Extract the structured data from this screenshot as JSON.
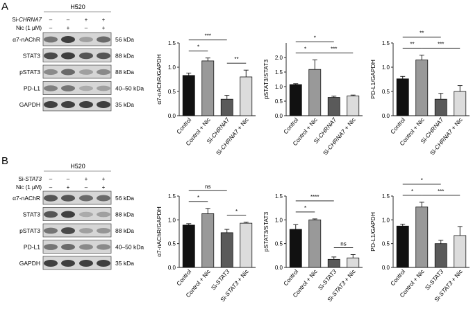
{
  "panels": [
    {
      "letter": "A",
      "cell_line": "H520",
      "conditions": [
        {
          "label": "Si-",
          "italic": "CHRNA7",
          "marks": [
            "–",
            "–",
            "+",
            "+"
          ]
        },
        {
          "label": "Nic (1 μM)",
          "marks": [
            "–",
            "+",
            "–",
            "+"
          ]
        }
      ],
      "blots": [
        {
          "name": "α7-nAChR",
          "kda": "56 kDa",
          "intensity": [
            0.55,
            0.8,
            0.35,
            0.6
          ]
        },
        {
          "name": "STAT3",
          "kda": "88 kDa",
          "intensity": [
            0.75,
            0.8,
            0.7,
            0.7
          ]
        },
        {
          "name": "pSTAT3",
          "kda": "88 kDa",
          "intensity": [
            0.45,
            0.6,
            0.35,
            0.45
          ]
        },
        {
          "name": "PD-L1",
          "kda": "40–50 kDa",
          "intensity": [
            0.5,
            0.55,
            0.3,
            0.35
          ]
        },
        {
          "name": "GAPDH",
          "kda": "35 kDa",
          "intensity": [
            0.8,
            0.8,
            0.8,
            0.8
          ]
        }
      ]
    },
    {
      "letter": "B",
      "cell_line": "H520",
      "conditions": [
        {
          "label": "Si-",
          "italic": "STAT3",
          "marks": [
            "–",
            "–",
            "+",
            "+"
          ]
        },
        {
          "label": "Nic (1 μM)",
          "marks": [
            "–",
            "+",
            "–",
            "+"
          ]
        }
      ],
      "blots": [
        {
          "name": "α7-nAChR",
          "kda": "56 kDa",
          "intensity": [
            0.7,
            0.7,
            0.6,
            0.6
          ]
        },
        {
          "name": "STAT3",
          "kda": "88 kDa",
          "intensity": [
            0.7,
            0.8,
            0.3,
            0.35
          ]
        },
        {
          "name": "pSTAT3",
          "kda": "88 kDa",
          "intensity": [
            0.55,
            0.75,
            0.35,
            0.4
          ]
        },
        {
          "name": "PD-L1",
          "kda": "40–50 kDa",
          "intensity": [
            0.55,
            0.6,
            0.45,
            0.45
          ]
        },
        {
          "name": "GAPDH",
          "kda": "35 kDa",
          "intensity": [
            0.8,
            0.8,
            0.8,
            0.8
          ]
        }
      ]
    }
  ],
  "colors": {
    "c1": "#111111",
    "c2": "#999999",
    "c3": "#5a5a5a",
    "c4": "#dcdcdc"
  },
  "chart_data": [
    {
      "type": "bar",
      "panel": "A",
      "ylabel": "α7-nAChR/GAPDH",
      "ylim": [
        0,
        1.5
      ],
      "ticks": [
        0.0,
        0.5,
        1.0,
        1.5
      ],
      "categories": [
        "Control",
        "Control + Nic",
        "Si-CHRNA7",
        "Si-CHRNA7 + Nic"
      ],
      "values": [
        0.83,
        1.13,
        0.34,
        0.8
      ],
      "errors": [
        0.05,
        0.06,
        0.08,
        0.14
      ],
      "significance": [
        {
          "from": 0,
          "to": 1,
          "label": "*"
        },
        {
          "from": 0,
          "to": 2,
          "label": "***"
        },
        {
          "from": 2,
          "to": 3,
          "label": "**"
        }
      ]
    },
    {
      "type": "bar",
      "panel": "A",
      "ylabel": "pSTAT3/STAT3",
      "ylim": [
        0,
        2.5
      ],
      "ticks": [
        0.0,
        0.5,
        1.0,
        1.5,
        2.0
      ],
      "categories": [
        "Control",
        "Control + Nic",
        "Si-CHRNA7",
        "Si-CHRNA7 + Nic"
      ],
      "values": [
        1.07,
        1.59,
        0.63,
        0.68
      ],
      "errors": [
        0.03,
        0.33,
        0.04,
        0.03
      ],
      "significance": [
        {
          "from": 0,
          "to": 1,
          "label": "*"
        },
        {
          "from": 0,
          "to": 2,
          "label": "*"
        },
        {
          "from": 1,
          "to": 3,
          "label": "***"
        }
      ]
    },
    {
      "type": "bar",
      "panel": "A",
      "ylabel": "PD-L1/GAPDH",
      "ylim": [
        0,
        1.5
      ],
      "ticks": [
        0.0,
        0.5,
        1.0,
        1.5
      ],
      "categories": [
        "Control",
        "Control + Nic",
        "Si-CHRNA7",
        "Si-CHRNA7 + Nic"
      ],
      "values": [
        0.76,
        1.15,
        0.34,
        0.5
      ],
      "errors": [
        0.05,
        0.1,
        0.12,
        0.12
      ],
      "significance": [
        {
          "from": 0,
          "to": 1,
          "label": "**"
        },
        {
          "from": 0,
          "to": 2,
          "label": "**"
        },
        {
          "from": 1,
          "to": 3,
          "label": "***"
        }
      ]
    },
    {
      "type": "bar",
      "panel": "B",
      "ylabel": "α7-nAChR/GAPDH",
      "ylim": [
        0,
        1.5
      ],
      "ticks": [
        0.0,
        0.5,
        1.0,
        1.5
      ],
      "categories": [
        "Control",
        "Control + Nic",
        "Si-STAT3",
        "Si-STAT3 + Nic"
      ],
      "values": [
        0.89,
        1.13,
        0.73,
        0.93
      ],
      "errors": [
        0.03,
        0.11,
        0.07,
        0.02
      ],
      "significance": [
        {
          "from": 0,
          "to": 1,
          "label": "*"
        },
        {
          "from": 0,
          "to": 2,
          "label": "ns"
        },
        {
          "from": 2,
          "to": 3,
          "label": "*"
        }
      ]
    },
    {
      "type": "bar",
      "panel": "B",
      "ylabel": "pSTAT3/STAT3",
      "ylim": [
        0,
        1.5
      ],
      "ticks": [
        0.0,
        0.5,
        1.0,
        1.5
      ],
      "categories": [
        "Control",
        "Control + Nic",
        "Si-STAT3",
        "Si-STAT3 + Nic"
      ],
      "values": [
        0.8,
        1.0,
        0.17,
        0.2
      ],
      "errors": [
        0.1,
        0.02,
        0.05,
        0.07
      ],
      "significance": [
        {
          "from": 0,
          "to": 1,
          "label": "*"
        },
        {
          "from": 0,
          "to": 2,
          "label": "****"
        },
        {
          "from": 2,
          "to": 3,
          "label": "ns"
        }
      ]
    },
    {
      "type": "bar",
      "panel": "B",
      "ylabel": "PD-L1/GAPDH",
      "ylim": [
        0,
        1.5
      ],
      "ticks": [
        0.0,
        0.5,
        1.0,
        1.5
      ],
      "categories": [
        "Control",
        "Control + Nic",
        "Si-STAT3",
        "Si-STAT3 + Nic"
      ],
      "values": [
        0.87,
        1.27,
        0.5,
        0.67
      ],
      "errors": [
        0.04,
        0.1,
        0.07,
        0.19
      ],
      "significance": [
        {
          "from": 0,
          "to": 1,
          "label": "*"
        },
        {
          "from": 0,
          "to": 2,
          "label": "*"
        },
        {
          "from": 1,
          "to": 3,
          "label": "***"
        }
      ]
    }
  ]
}
